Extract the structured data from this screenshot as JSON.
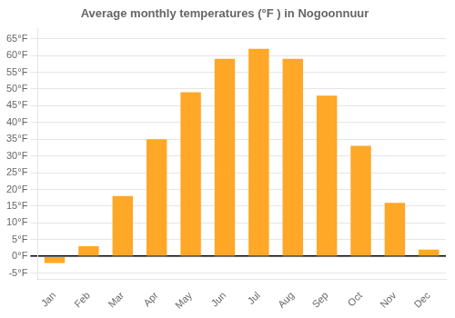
{
  "chart_data": {
    "type": "bar",
    "title": "Average monthly temperatures (°F ) in Nogoonnuur",
    "categories": [
      "Jan",
      "Feb",
      "Mar",
      "Apr",
      "May",
      "Jun",
      "Jul",
      "Aug",
      "Sep",
      "Oct",
      "Nov",
      "Dec"
    ],
    "values": [
      -2,
      3,
      18,
      35,
      49,
      59,
      62,
      59,
      48,
      33,
      16,
      2
    ],
    "color": "#FFA726",
    "ylim": [
      -7,
      68
    ],
    "yticks": [
      {
        "value": -5,
        "label": "-5°F"
      },
      {
        "value": 0,
        "label": "0°F"
      },
      {
        "value": 5,
        "label": "5°F"
      },
      {
        "value": 10,
        "label": "10°F"
      },
      {
        "value": 15,
        "label": "15°F"
      },
      {
        "value": 20,
        "label": "20°F"
      },
      {
        "value": 25,
        "label": "25°F"
      },
      {
        "value": 30,
        "label": "30°F"
      },
      {
        "value": 35,
        "label": "35°F"
      },
      {
        "value": 40,
        "label": "40°F"
      },
      {
        "value": 45,
        "label": "45°F"
      },
      {
        "value": 50,
        "label": "50°F"
      },
      {
        "value": 55,
        "label": "55°F"
      },
      {
        "value": 60,
        "label": "60°F"
      },
      {
        "value": 65,
        "label": "65°F"
      }
    ],
    "grid": true
  }
}
